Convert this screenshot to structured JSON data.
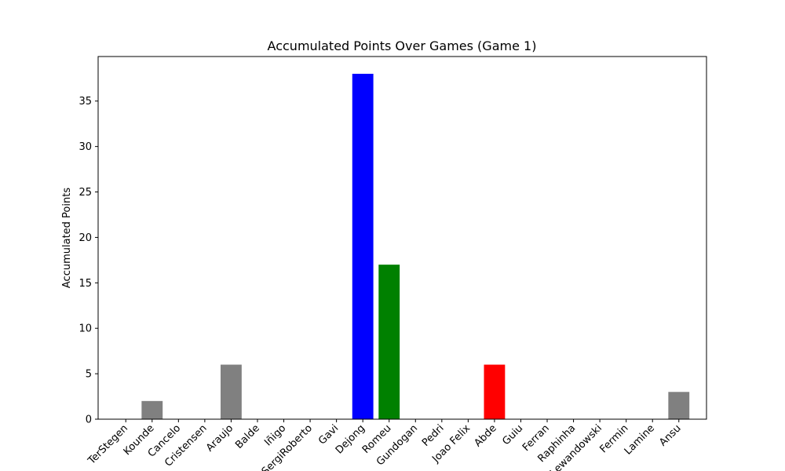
{
  "chart_data": {
    "type": "bar",
    "title": "Accumulated Points Over Games (Game 1)",
    "xlabel": "",
    "ylabel": "Accumulated Points",
    "ylim": [
      0,
      39.9
    ],
    "yticks": [
      0,
      5,
      10,
      15,
      20,
      25,
      30,
      35
    ],
    "grid": false,
    "categories": [
      "TerStegen",
      "Kounde",
      "Cancelo",
      "Cristensen",
      "Araujo",
      "Balde",
      "Iñigo",
      "SergiRoberto",
      "Gavi",
      "Dejong",
      "Romeu",
      "Gundogan",
      "Pedri",
      "Joao Felix",
      "Abde",
      "Guiu",
      "Ferran",
      "Raphinha",
      "Lewandowski",
      "Fermin",
      "Lamine",
      "Ansu"
    ],
    "values": [
      0,
      2,
      0,
      0,
      6,
      0,
      0,
      0,
      0,
      38,
      17,
      0,
      0,
      0,
      6,
      0,
      0,
      0,
      0,
      0,
      0,
      3
    ],
    "colors": [
      "#808080",
      "#808080",
      "#808080",
      "#808080",
      "#808080",
      "#808080",
      "#808080",
      "#808080",
      "#808080",
      "#0000ff",
      "#008000",
      "#808080",
      "#808080",
      "#808080",
      "#ff0000",
      "#808080",
      "#808080",
      "#808080",
      "#808080",
      "#808080",
      "#808080",
      "#808080"
    ]
  }
}
